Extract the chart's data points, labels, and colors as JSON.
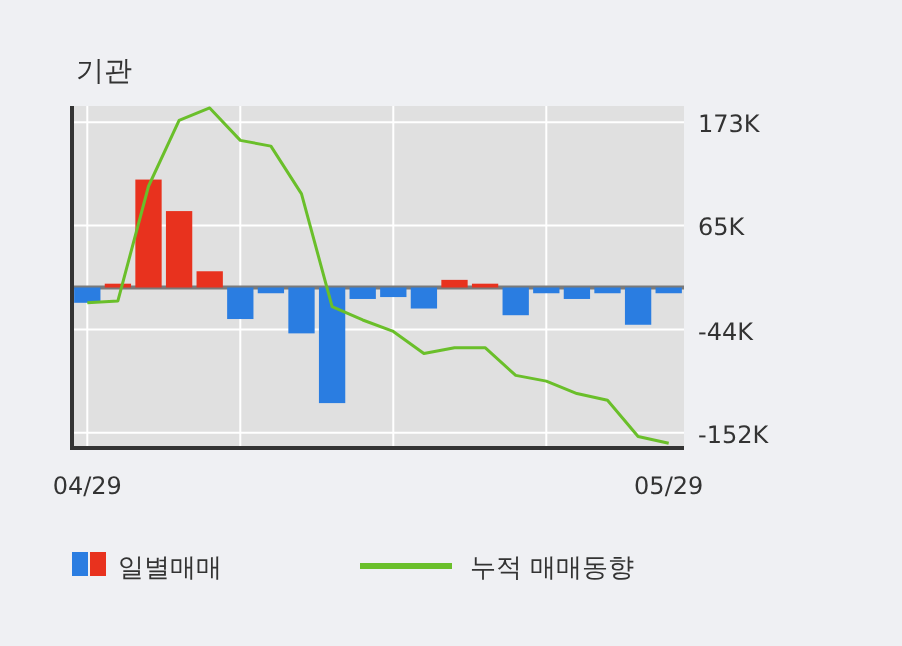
{
  "chart_data": {
    "type": "bar",
    "title": "기관",
    "categories": [
      "04/29",
      null,
      null,
      null,
      null,
      null,
      null,
      null,
      null,
      null,
      null,
      null,
      null,
      null,
      null,
      null,
      null,
      null,
      null,
      "05/29"
    ],
    "series": [
      {
        "name": "일별매매",
        "colors": [
          "#2a7de1",
          "#e8321e",
          "#e8321e",
          "#e8321e",
          "#e8321e",
          "#2a7de1",
          "#2a7de1",
          "#2a7de1",
          "#2a7de1",
          "#2a7de1",
          "#2a7de1",
          "#2a7de1",
          "#e8321e",
          "#e8321e",
          "#2a7de1",
          "#2a7de1",
          "#2a7de1",
          "#2a7de1",
          "#2a7de1",
          "#2a7de1"
        ],
        "values": [
          -16000,
          4000,
          113000,
          80000,
          17000,
          -33000,
          -6000,
          -48000,
          -121000,
          -12000,
          -10000,
          -22000,
          8000,
          4000,
          -29000,
          -6000,
          -12000,
          -6000,
          -39000,
          -6000
        ]
      },
      {
        "name": "누적 매매동향",
        "type": "line",
        "color": "#6abf2a",
        "values": [
          -16000,
          -14000,
          106000,
          175000,
          188000,
          154000,
          148000,
          98000,
          -20000,
          -34000,
          -46000,
          -69000,
          -63000,
          -63000,
          -92000,
          -98000,
          -111000,
          -118000,
          -156000,
          -163000
        ]
      }
    ],
    "ylim": [
      -168000,
      190000
    ],
    "yticks": [
      {
        "value": 173000,
        "label": "173K"
      },
      {
        "value": 65000,
        "label": "65K"
      },
      {
        "value": -44000,
        "label": "-44K"
      },
      {
        "value": -152000,
        "label": "-152K"
      }
    ],
    "grid": true,
    "legend": "bottom"
  }
}
